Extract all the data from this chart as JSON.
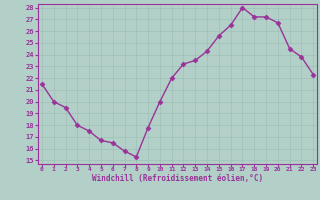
{
  "x": [
    0,
    1,
    2,
    3,
    4,
    5,
    6,
    7,
    8,
    9,
    10,
    11,
    12,
    13,
    14,
    15,
    16,
    17,
    18,
    19,
    20,
    21,
    22,
    23
  ],
  "y": [
    21.5,
    20.0,
    19.5,
    18.0,
    17.5,
    16.7,
    16.5,
    15.8,
    15.3,
    17.8,
    20.0,
    22.0,
    23.2,
    23.5,
    24.3,
    25.6,
    26.5,
    28.0,
    27.2,
    27.2,
    26.7,
    24.5,
    23.8,
    22.3
  ],
  "line_color": "#993399",
  "marker": "D",
  "marker_size": 2.5,
  "linewidth": 1.0,
  "ylim": [
    15,
    28
  ],
  "xlim": [
    -0.3,
    23.3
  ],
  "yticks": [
    15,
    16,
    17,
    18,
    19,
    20,
    21,
    22,
    23,
    24,
    25,
    26,
    27,
    28
  ],
  "xticks": [
    0,
    1,
    2,
    3,
    4,
    5,
    6,
    7,
    8,
    9,
    10,
    11,
    12,
    13,
    14,
    15,
    16,
    17,
    18,
    19,
    20,
    21,
    22,
    23
  ],
  "xlabel": "Windchill (Refroidissement éolien,°C)",
  "background_color": "#b2cfc8",
  "plot_bg_color": "#b2cfc8",
  "grid_color": "#8fb5ae",
  "line_grid_color": "#9ec0b8",
  "label_color": "#993399",
  "tick_color": "#993399",
  "spine_color": "#993399"
}
